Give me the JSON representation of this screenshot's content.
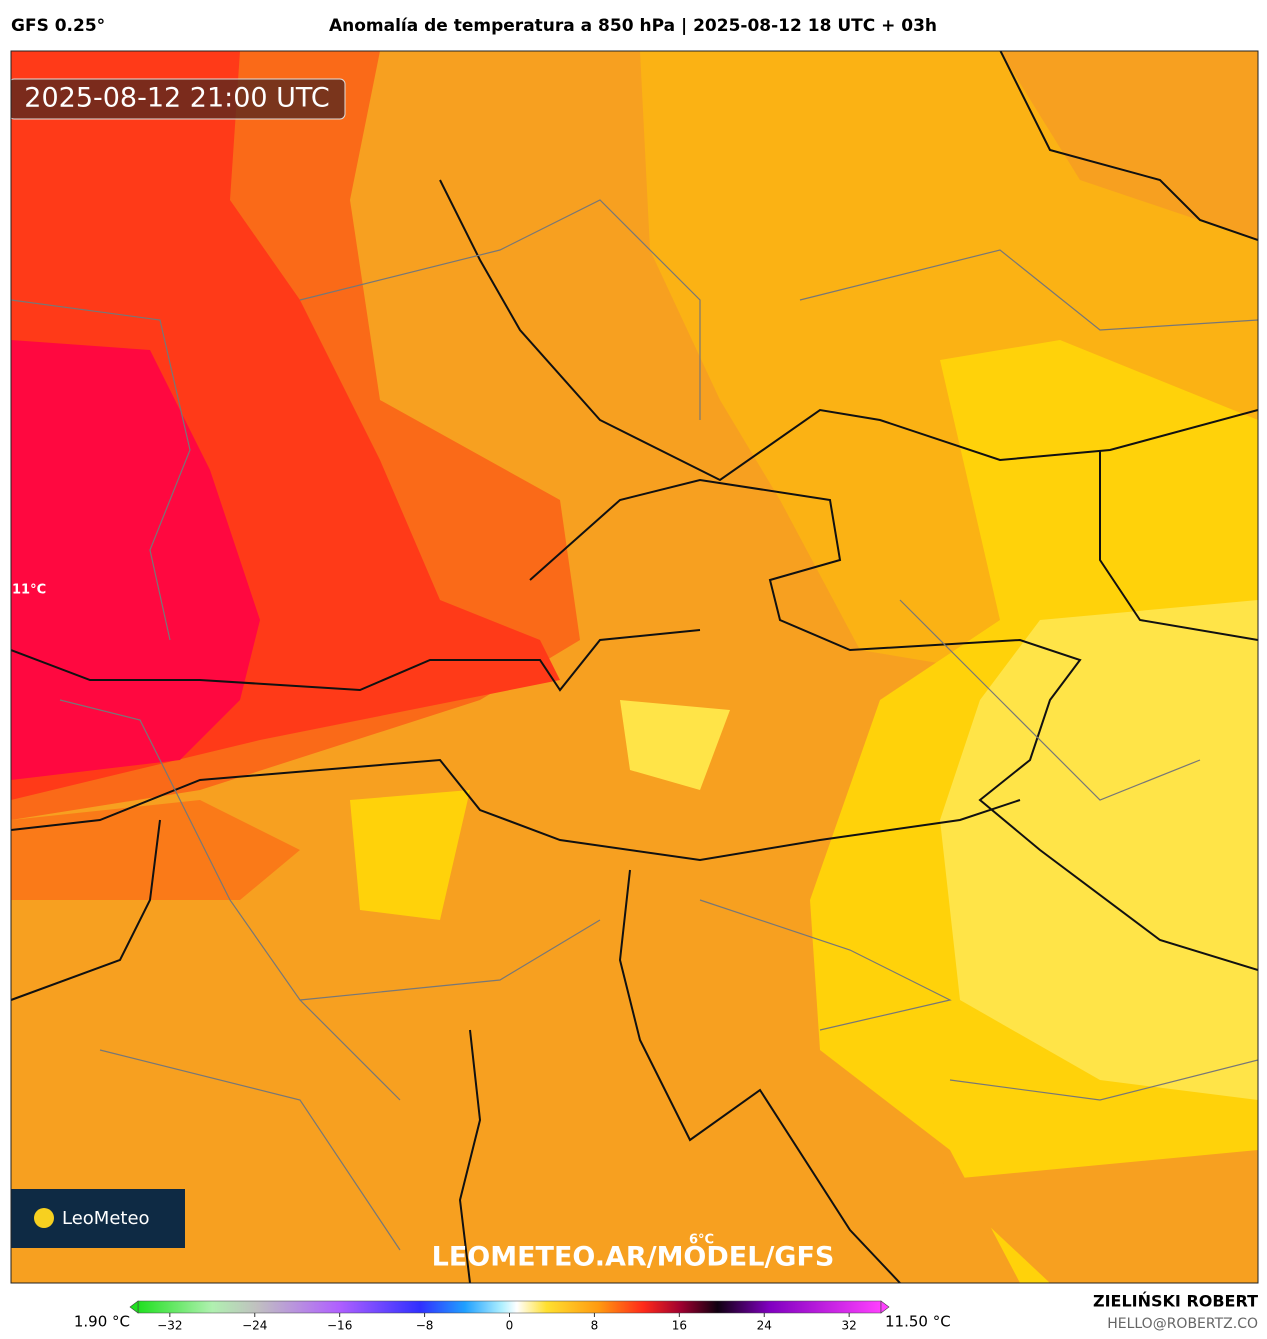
{
  "header": {
    "model": "GFS 0.25°",
    "title": "Anomalía de temperatura a 850 hPa | 2025-08-12 18 UTC + 03h"
  },
  "map": {
    "timestamp": "2025-08-12 21:00 UTC",
    "labels": [
      "11°C",
      "6°C"
    ],
    "watermark": "LEOMETEO.AR/MODEL/GFS",
    "logo": "LeoMeteo"
  },
  "colorbar": {
    "lim": [
      -35,
      35
    ],
    "ticks": [
      {
        "value": -32,
        "label": "−32"
      },
      {
        "value": -24,
        "label": "−24"
      },
      {
        "value": -16,
        "label": "−16"
      },
      {
        "value": -8,
        "label": "−8"
      },
      0,
      8,
      16,
      24,
      32
    ],
    "min_label": "1.90 °C",
    "max_label": "11.50 °C"
  },
  "footer": {
    "author": "ZIELIŃSKI ROBERT",
    "email": "HELLO@ROBERTZ.CO"
  }
}
